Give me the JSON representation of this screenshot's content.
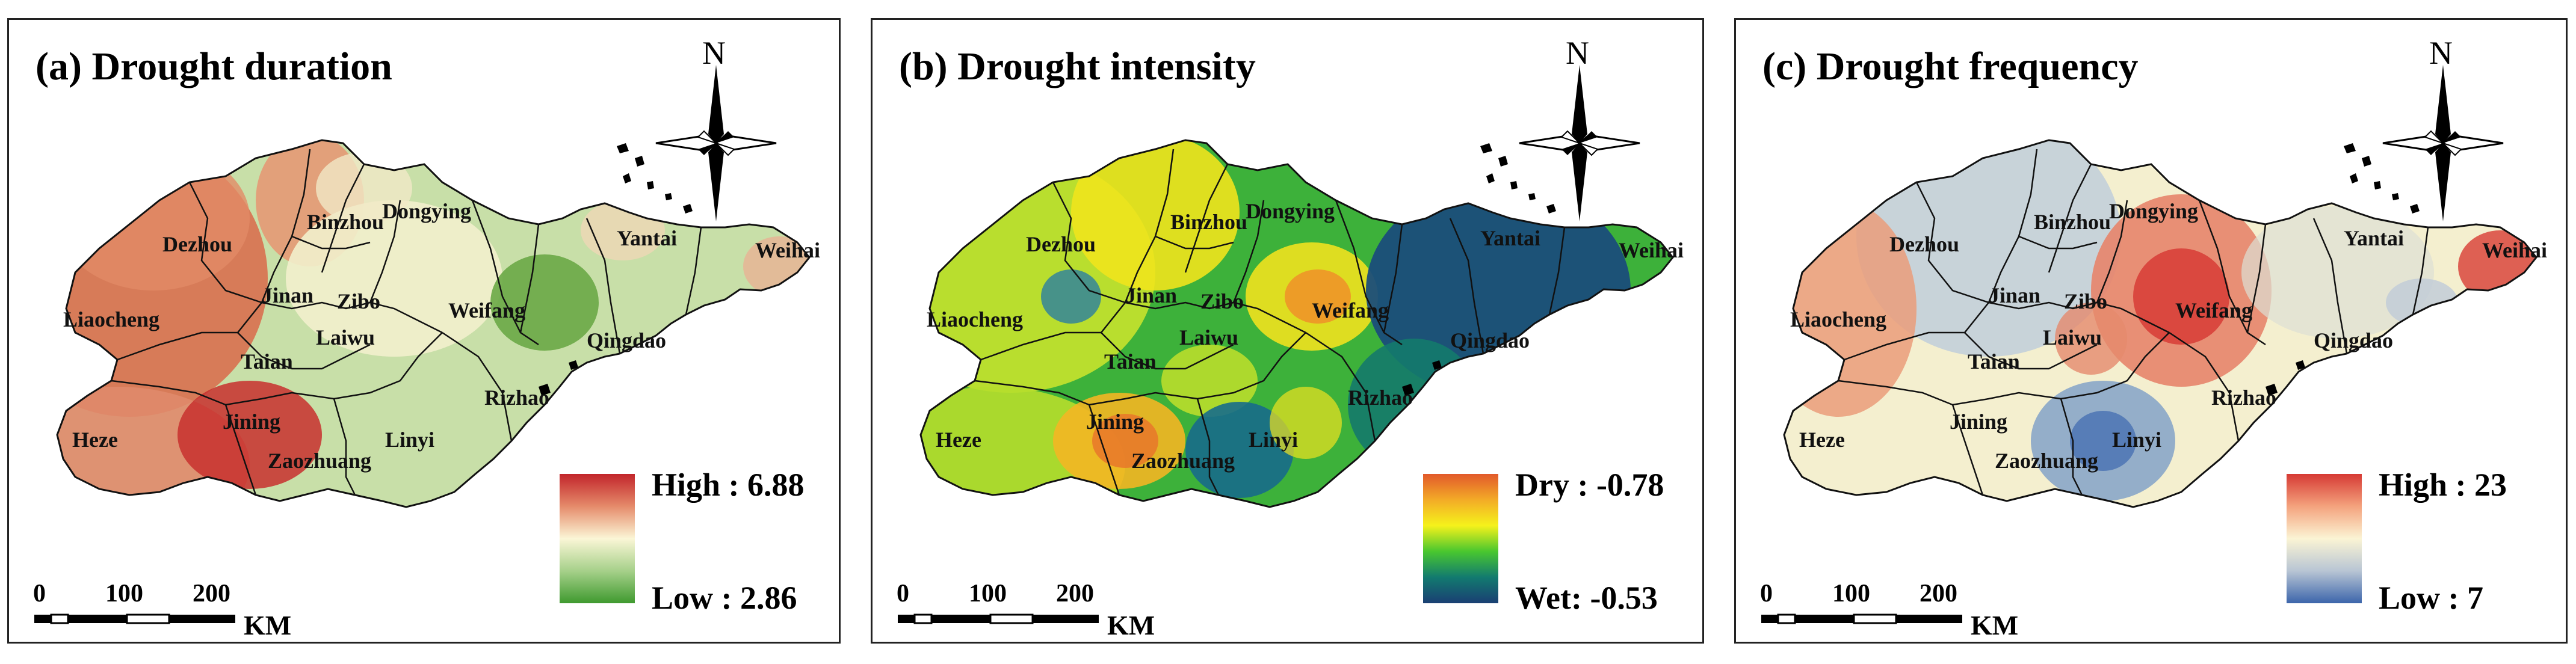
{
  "panels": [
    {
      "id": "a",
      "title": "(a) Drought duration",
      "legend": {
        "high_label": "High : 6.88",
        "low_label": "Low : 2.86",
        "colors": [
          "#c2252b",
          "#e58a6a",
          "#fbf6d6",
          "#a6d08a",
          "#3f9a2f"
        ]
      }
    },
    {
      "id": "b",
      "title": "(b) Drought intensity",
      "legend": {
        "high_label": "Dry : -0.78",
        "low_label": "Wet: -0.53",
        "colors": [
          "#e2592b",
          "#f3ab27",
          "#f5f21b",
          "#49c72f",
          "#127a6f",
          "#1a3f73"
        ]
      }
    },
    {
      "id": "c",
      "title": "(c) Drought frequency",
      "legend": {
        "high_label": "High : 23",
        "low_label": "Low : 7",
        "colors": [
          "#d63a34",
          "#f4a27d",
          "#fbf4d4",
          "#b8c5d4",
          "#3c65ab"
        ]
      }
    }
  ],
  "north_label": "N",
  "scale": {
    "t0": "0",
    "t1": "100",
    "t2": "200",
    "unit": "KM"
  },
  "cities": [
    "Binzhou",
    "Dongying",
    "Dezhou",
    "Jinan",
    "Zibo",
    "Liaocheng",
    "Weifang",
    "Qingdao",
    "Yantai",
    "Weihai",
    "Laiwu",
    "Taian",
    "Heze",
    "Jining",
    "Zaozhuang",
    "Linyi",
    "Rizhao"
  ]
}
